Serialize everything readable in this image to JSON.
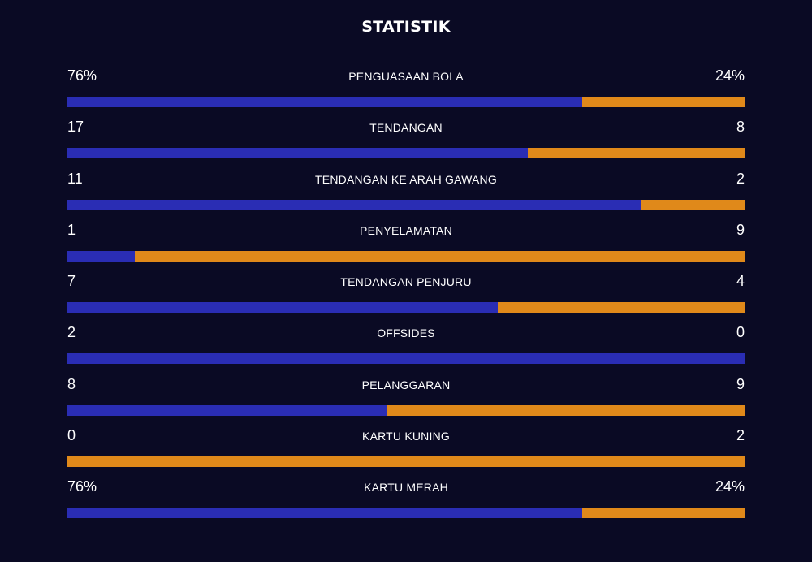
{
  "header": {
    "title": "STATISTIK"
  },
  "colors": {
    "background": "#0a0a24",
    "home": "#2a2db4",
    "away": "#e0891a",
    "text": "#ffffff"
  },
  "stats": [
    {
      "label": "PENGUASAAN BOLA",
      "home": "76%",
      "away": "24%",
      "home_share": 0.76
    },
    {
      "label": "TENDANGAN",
      "home": "17",
      "away": "8",
      "home_share": 0.68
    },
    {
      "label": "TENDANGAN KE ARAH GAWANG",
      "home": "11",
      "away": "2",
      "home_share": 0.846
    },
    {
      "label": "PENYELAMATAN",
      "home": "1",
      "away": "9",
      "home_share": 0.1
    },
    {
      "label": "TENDANGAN PENJURU",
      "home": "7",
      "away": "4",
      "home_share": 0.636
    },
    {
      "label": "OFFSIDES",
      "home": "2",
      "away": "0",
      "home_share": 1.0
    },
    {
      "label": "PELANGGARAN",
      "home": "8",
      "away": "9",
      "home_share": 0.471
    },
    {
      "label": "KARTU KUNING",
      "home": "0",
      "away": "2",
      "home_share": 0.0
    },
    {
      "label": "KARTU MERAH",
      "home": "76%",
      "away": "24%",
      "home_share": 0.76
    }
  ]
}
